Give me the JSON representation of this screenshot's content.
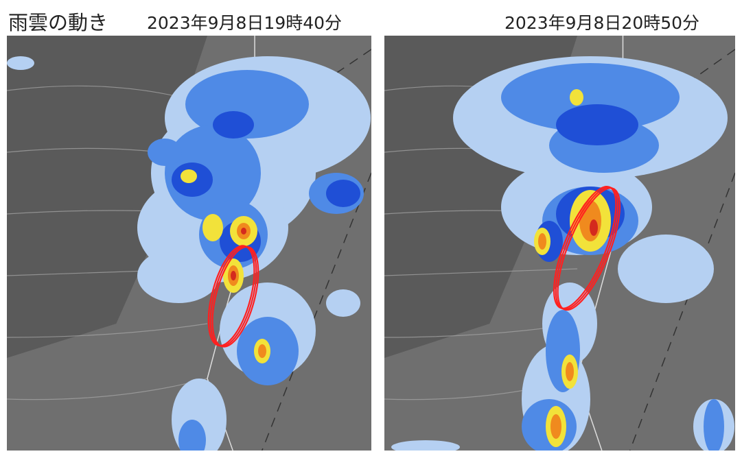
{
  "title": "雨雲の動き",
  "panels": [
    {
      "time": "2023年9月8日19時40分"
    },
    {
      "time": "2023年9月8日20時50分"
    }
  ],
  "colors": {
    "background": "#6f6f6f",
    "terrain_dark": "#555555",
    "rain_light": "#b5d0f2",
    "rain_medium": "#4f8ae6",
    "rain_heavy": "#1f4fd6",
    "rain_intense_yellow": "#f2e23a",
    "rain_intense_orange": "#f08a1e",
    "rain_extreme_red": "#d42a1e",
    "highlight_ellipse": "#ff2020"
  }
}
